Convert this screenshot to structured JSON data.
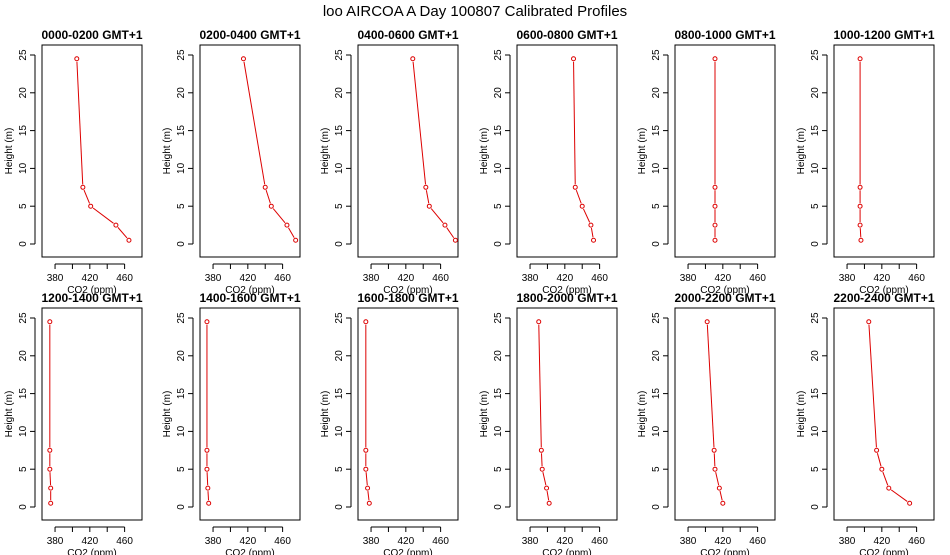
{
  "title": "loo AIRCOA A  Day 100807  Calibrated Profiles",
  "colors": {
    "series": "#dd0000",
    "axis": "#000000",
    "background": "#ffffff"
  },
  "chart_data": [
    {
      "type": "line",
      "title": "0000-0200 GMT+1",
      "xlabel": "CO2 (ppm)",
      "ylabel": "Height (m)",
      "xlim": [
        365,
        480
      ],
      "ylim": [
        0,
        25
      ],
      "xticks": [
        380,
        420,
        460
      ],
      "yticks": [
        0,
        5,
        10,
        15,
        20,
        25
      ],
      "x": [
        405,
        412,
        421,
        450,
        465
      ],
      "y": [
        24.5,
        7.5,
        5,
        2.5,
        0.5
      ]
    },
    {
      "type": "line",
      "title": "0200-0400 GMT+1",
      "xlabel": "CO2 (ppm)",
      "ylabel": "Height (m)",
      "xlim": [
        365,
        480
      ],
      "ylim": [
        0,
        25
      ],
      "xticks": [
        380,
        420,
        460
      ],
      "yticks": [
        0,
        5,
        10,
        15,
        20,
        25
      ],
      "x": [
        415,
        440,
        447,
        465,
        475
      ],
      "y": [
        24.5,
        7.5,
        5,
        2.5,
        0.5
      ]
    },
    {
      "type": "line",
      "title": "0400-0600 GMT+1",
      "xlabel": "CO2 (ppm)",
      "ylabel": "Height (m)",
      "xlim": [
        365,
        480
      ],
      "ylim": [
        0,
        25
      ],
      "xticks": [
        380,
        420,
        460
      ],
      "yticks": [
        0,
        5,
        10,
        15,
        20,
        25
      ],
      "x": [
        428,
        443,
        447,
        465,
        477
      ],
      "y": [
        24.5,
        7.5,
        5,
        2.5,
        0.5
      ]
    },
    {
      "type": "line",
      "title": "0600-0800 GMT+1",
      "xlabel": "CO2 (ppm)",
      "ylabel": "Height (m)",
      "xlim": [
        365,
        480
      ],
      "ylim": [
        0,
        25
      ],
      "xticks": [
        380,
        420,
        460
      ],
      "yticks": [
        0,
        5,
        10,
        15,
        20,
        25
      ],
      "x": [
        430,
        432,
        440,
        450,
        453
      ],
      "y": [
        24.5,
        7.5,
        5,
        2.5,
        0.5
      ]
    },
    {
      "type": "line",
      "title": "0800-1000 GMT+1",
      "xlabel": "CO2 (ppm)",
      "ylabel": "Height (m)",
      "xlim": [
        365,
        480
      ],
      "ylim": [
        0,
        25
      ],
      "xticks": [
        380,
        420,
        460
      ],
      "yticks": [
        0,
        5,
        10,
        15,
        20,
        25
      ],
      "x": [
        411,
        411,
        411,
        411,
        411
      ],
      "y": [
        24.5,
        7.5,
        5,
        2.5,
        0.5
      ]
    },
    {
      "type": "line",
      "title": "1000-1200 GMT+1",
      "xlabel": "CO2 (ppm)",
      "ylabel": "Height (m)",
      "xlim": [
        365,
        480
      ],
      "ylim": [
        0,
        25
      ],
      "xticks": [
        380,
        420,
        460
      ],
      "yticks": [
        0,
        5,
        10,
        15,
        20,
        25
      ],
      "x": [
        395,
        395,
        395,
        395,
        396
      ],
      "y": [
        24.5,
        7.5,
        5,
        2.5,
        0.5
      ]
    },
    {
      "type": "line",
      "title": "1200-1400 GMT+1",
      "xlabel": "CO2 (ppm)",
      "ylabel": "Height (m)",
      "xlim": [
        365,
        480
      ],
      "ylim": [
        0,
        25
      ],
      "xticks": [
        380,
        420,
        460
      ],
      "yticks": [
        0,
        5,
        10,
        15,
        20,
        25
      ],
      "x": [
        374,
        374,
        374,
        375,
        375
      ],
      "y": [
        24.5,
        7.5,
        5,
        2.5,
        0.5
      ]
    },
    {
      "type": "line",
      "title": "1400-1600 GMT+1",
      "xlabel": "CO2 (ppm)",
      "ylabel": "Height (m)",
      "xlim": [
        365,
        480
      ],
      "ylim": [
        0,
        25
      ],
      "xticks": [
        380,
        420,
        460
      ],
      "yticks": [
        0,
        5,
        10,
        15,
        20,
        25
      ],
      "x": [
        373,
        373,
        373,
        374,
        375
      ],
      "y": [
        24.5,
        7.5,
        5,
        2.5,
        0.5
      ]
    },
    {
      "type": "line",
      "title": "1600-1800 GMT+1",
      "xlabel": "CO2 (ppm)",
      "ylabel": "Height (m)",
      "xlim": [
        365,
        480
      ],
      "ylim": [
        0,
        25
      ],
      "xticks": [
        380,
        420,
        460
      ],
      "yticks": [
        0,
        5,
        10,
        15,
        20,
        25
      ],
      "x": [
        374,
        374,
        374,
        376,
        378
      ],
      "y": [
        24.5,
        7.5,
        5,
        2.5,
        0.5
      ]
    },
    {
      "type": "line",
      "title": "1800-2000 GMT+1",
      "xlabel": "CO2 (ppm)",
      "ylabel": "Height (m)",
      "xlim": [
        365,
        480
      ],
      "ylim": [
        0,
        25
      ],
      "xticks": [
        380,
        420,
        460
      ],
      "yticks": [
        0,
        5,
        10,
        15,
        20,
        25
      ],
      "x": [
        390,
        393,
        394,
        399,
        402
      ],
      "y": [
        24.5,
        7.5,
        5,
        2.5,
        0.5
      ]
    },
    {
      "type": "line",
      "title": "2000-2200 GMT+1",
      "xlabel": "CO2 (ppm)",
      "ylabel": "Height (m)",
      "xlim": [
        365,
        480
      ],
      "ylim": [
        0,
        25
      ],
      "xticks": [
        380,
        420,
        460
      ],
      "yticks": [
        0,
        5,
        10,
        15,
        20,
        25
      ],
      "x": [
        402,
        410,
        411,
        416,
        420
      ],
      "y": [
        24.5,
        7.5,
        5,
        2.5,
        0.5
      ]
    },
    {
      "type": "line",
      "title": "2200-2400 GMT+1",
      "xlabel": "CO2 (ppm)",
      "ylabel": "Height (m)",
      "xlim": [
        365,
        480
      ],
      "ylim": [
        0,
        25
      ],
      "xticks": [
        380,
        420,
        460
      ],
      "yticks": [
        0,
        5,
        10,
        15,
        20,
        25
      ],
      "x": [
        405,
        414,
        420,
        428,
        452
      ],
      "y": [
        24.5,
        7.5,
        5,
        2.5,
        0.5
      ]
    }
  ]
}
